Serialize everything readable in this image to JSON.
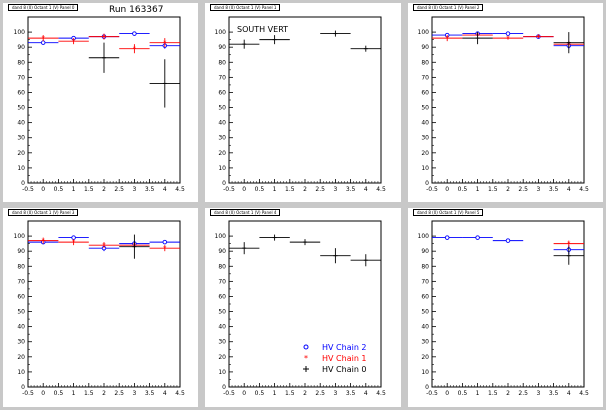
{
  "window": {
    "run_label": "Run 163367"
  },
  "colors": {
    "frame": "#c8c8c8",
    "chain0": "#000000",
    "chain1": "#ff0000",
    "chain2": "#0000ff"
  },
  "legend": {
    "entries": [
      {
        "label": "HV Chain 2",
        "marker": "circle",
        "color": "#0000ff"
      },
      {
        "label": "HV Chain 1",
        "marker": "star",
        "color": "#ff0000"
      },
      {
        "label": "HV Chain 0",
        "marker": "cross",
        "color": "#000000"
      }
    ]
  },
  "chart_data": [
    {
      "type": "scatter",
      "title": "dand 8 (0) Octant 1 (V) Panel 0",
      "xlim": [
        -0.5,
        4.5
      ],
      "ylim": [
        0,
        110
      ],
      "xticks": [
        "-0.5",
        "0",
        "0.5",
        "1",
        "1.5",
        "2",
        "2.5",
        "3",
        "3.5",
        "4",
        "4.5"
      ],
      "yticks": [
        "0",
        "10",
        "20",
        "30",
        "40",
        "50",
        "60",
        "70",
        "80",
        "90",
        "100"
      ],
      "annotation": "",
      "series": [
        {
          "name": "HV Chain 2",
          "marker": "circle",
          "color": "#0000ff",
          "points": [
            [
              0,
              93
            ],
            [
              1,
              96
            ],
            [
              2,
              97
            ],
            [
              3,
              99
            ],
            [
              4,
              91
            ]
          ],
          "yerr": [
            1,
            1,
            1,
            1,
            2
          ]
        },
        {
          "name": "HV Chain 1",
          "marker": "star",
          "color": "#ff0000",
          "points": [
            [
              0,
              96
            ],
            [
              1,
              94
            ],
            [
              2,
              97
            ],
            [
              3,
              89
            ],
            [
              4,
              93
            ]
          ],
          "yerr": [
            2,
            2,
            2,
            3,
            3
          ]
        },
        {
          "name": "HV Chain 0",
          "marker": "cross",
          "color": "#000000",
          "points": [
            [
              2,
              83
            ],
            [
              4,
              66
            ]
          ],
          "yerr": [
            10,
            16
          ]
        }
      ]
    },
    {
      "type": "scatter",
      "title": "dand 8 (0) Octant 1 (V) Panel 1",
      "xlim": [
        -0.5,
        4.5
      ],
      "ylim": [
        0,
        110
      ],
      "xticks": [
        "-0.5",
        "0",
        "0.5",
        "1",
        "1.5",
        "2",
        "2.5",
        "3",
        "3.5",
        "4",
        "4.5"
      ],
      "yticks": [
        "0",
        "10",
        "20",
        "30",
        "40",
        "50",
        "60",
        "70",
        "80",
        "90",
        "100"
      ],
      "annotation": "SOUTH VERT",
      "series": [
        {
          "name": "HV Chain 0",
          "marker": "cross",
          "color": "#000000",
          "points": [
            [
              0,
              92
            ],
            [
              1,
              95
            ],
            [
              3,
              99
            ],
            [
              4,
              89
            ]
          ],
          "yerr": [
            3,
            3,
            2,
            2
          ]
        }
      ]
    },
    {
      "type": "scatter",
      "title": "dand 8 (0) Octant 1 (V) Panel 2",
      "xlim": [
        -0.5,
        4.5
      ],
      "ylim": [
        0,
        110
      ],
      "xticks": [
        "-0.5",
        "0",
        "0.5",
        "1",
        "1.5",
        "2",
        "2.5",
        "3",
        "3.5",
        "4",
        "4.5"
      ],
      "yticks": [
        "0",
        "10",
        "20",
        "30",
        "40",
        "50",
        "60",
        "70",
        "80",
        "90",
        "100"
      ],
      "annotation": "",
      "series": [
        {
          "name": "HV Chain 2",
          "marker": "circle",
          "color": "#0000ff",
          "points": [
            [
              0,
              98
            ],
            [
              1,
              99
            ],
            [
              2,
              99
            ],
            [
              3,
              97
            ],
            [
              4,
              91
            ]
          ],
          "yerr": [
            1,
            1,
            1,
            1,
            2
          ]
        },
        {
          "name": "HV Chain 1",
          "marker": "star",
          "color": "#ff0000",
          "points": [
            [
              0,
              96
            ],
            [
              1,
              98
            ],
            [
              2,
              96
            ],
            [
              3,
              97
            ],
            [
              4,
              92
            ]
          ],
          "yerr": [
            2,
            1,
            1,
            1,
            2
          ]
        },
        {
          "name": "HV Chain 0",
          "marker": "cross",
          "color": "#000000",
          "points": [
            [
              1,
              96
            ],
            [
              4,
              93
            ]
          ],
          "yerr": [
            4,
            7
          ]
        }
      ]
    },
    {
      "type": "scatter",
      "title": "dand 8 (0) Octant 1 (V) Panel 3",
      "xlim": [
        -0.5,
        4.5
      ],
      "ylim": [
        0,
        110
      ],
      "xticks": [
        "-0.5",
        "0",
        "0.5",
        "1",
        "1.5",
        "2",
        "2.5",
        "3",
        "3.5",
        "4",
        "4.5"
      ],
      "yticks": [
        "0",
        "10",
        "20",
        "30",
        "40",
        "50",
        "60",
        "70",
        "80",
        "90",
        "100"
      ],
      "annotation": "",
      "series": [
        {
          "name": "HV Chain 2",
          "marker": "circle",
          "color": "#0000ff",
          "points": [
            [
              0,
              96
            ],
            [
              1,
              99
            ],
            [
              2,
              92
            ],
            [
              3,
              95
            ],
            [
              4,
              96
            ]
          ],
          "yerr": [
            1,
            1,
            2,
            2,
            1
          ]
        },
        {
          "name": "HV Chain 1",
          "marker": "star",
          "color": "#ff0000",
          "points": [
            [
              0,
              97
            ],
            [
              1,
              96
            ],
            [
              2,
              94
            ],
            [
              3,
              94
            ],
            [
              4,
              92
            ]
          ],
          "yerr": [
            2,
            2,
            2,
            2,
            2
          ]
        },
        {
          "name": "HV Chain 0",
          "marker": "cross",
          "color": "#000000",
          "points": [
            [
              3,
              93
            ]
          ],
          "yerr": [
            8
          ]
        }
      ]
    },
    {
      "type": "scatter",
      "title": "dand 8 (0) Octant 1 (V) Panel 4",
      "xlim": [
        -0.5,
        4.5
      ],
      "ylim": [
        0,
        110
      ],
      "xticks": [
        "-0.5",
        "0",
        "0.5",
        "1",
        "1.5",
        "2",
        "2.5",
        "3",
        "3.5",
        "4",
        "4.5"
      ],
      "yticks": [
        "0",
        "10",
        "20",
        "30",
        "40",
        "50",
        "60",
        "70",
        "80",
        "90",
        "100"
      ],
      "annotation": "",
      "series": [
        {
          "name": "HV Chain 0",
          "marker": "cross",
          "color": "#000000",
          "points": [
            [
              0,
              92
            ],
            [
              1,
              99
            ],
            [
              2,
              96
            ],
            [
              3,
              87
            ],
            [
              4,
              84
            ]
          ],
          "yerr": [
            4,
            2,
            2,
            5,
            4
          ]
        }
      ]
    },
    {
      "type": "scatter",
      "title": "dand 8 (0) Octant 1 (V) Panel 5",
      "xlim": [
        -0.5,
        4.5
      ],
      "ylim": [
        0,
        110
      ],
      "xticks": [
        "-0.5",
        "0",
        "0.5",
        "1",
        "1.5",
        "2",
        "2.5",
        "3",
        "3.5",
        "4",
        "4.5"
      ],
      "yticks": [
        "0",
        "10",
        "20",
        "30",
        "40",
        "50",
        "60",
        "70",
        "80",
        "90",
        "100"
      ],
      "annotation": "",
      "series": [
        {
          "name": "HV Chain 2",
          "marker": "circle",
          "color": "#0000ff",
          "points": [
            [
              0,
              99
            ],
            [
              1,
              99
            ],
            [
              2,
              97
            ],
            [
              4,
              91
            ]
          ],
          "yerr": [
            1,
            1,
            1,
            3
          ]
        },
        {
          "name": "HV Chain 1",
          "marker": "star",
          "color": "#ff0000",
          "points": [
            [
              4,
              95
            ]
          ],
          "yerr": [
            2
          ]
        },
        {
          "name": "HV Chain 0",
          "marker": "cross",
          "color": "#000000",
          "points": [
            [
              4,
              87
            ]
          ],
          "yerr": [
            6
          ]
        }
      ]
    }
  ]
}
